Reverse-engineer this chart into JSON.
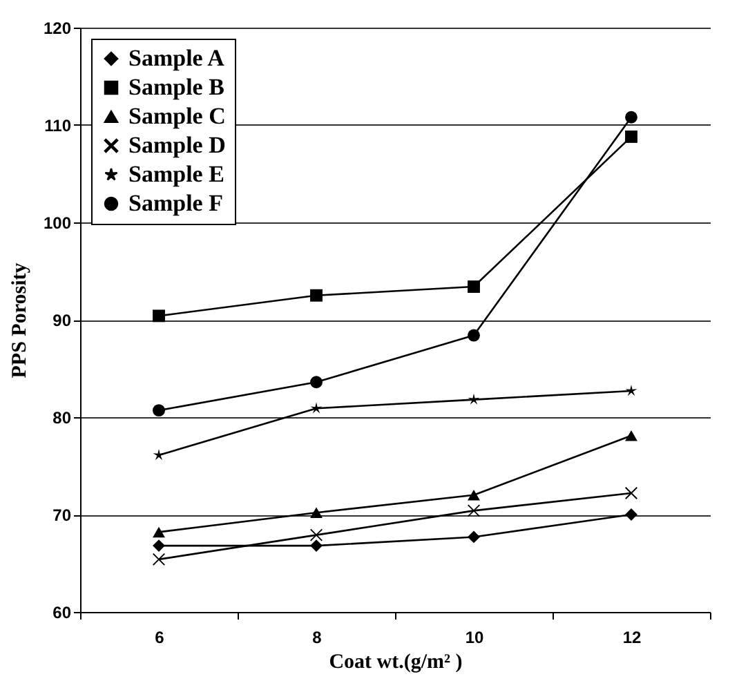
{
  "chart_data": {
    "type": "line",
    "xlabel": "Coat wt.(g/m² )",
    "ylabel": "PPS Porosity",
    "categories": [
      "6",
      "8",
      "10",
      "12"
    ],
    "series": [
      {
        "name": "Sample A",
        "color": "#000000",
        "marker": "diamond",
        "values": [
          66.8,
          66.8,
          67.7,
          70.0
        ]
      },
      {
        "name": "Sample B",
        "color": "#000000",
        "marker": "square",
        "values": [
          90.4,
          92.5,
          93.4,
          108.8
        ]
      },
      {
        "name": "Sample C",
        "color": "#000000",
        "marker": "triangle",
        "values": [
          68.2,
          70.2,
          72.0,
          78.1
        ]
      },
      {
        "name": "Sample D",
        "color": "#000000",
        "marker": "cross",
        "values": [
          65.4,
          67.9,
          70.4,
          72.2
        ]
      },
      {
        "name": "Sample E",
        "color": "#000000",
        "marker": "star",
        "values": [
          76.1,
          80.9,
          81.8,
          82.7
        ]
      },
      {
        "name": "Sample F",
        "color": "#000000",
        "marker": "circle",
        "values": [
          80.7,
          83.6,
          88.4,
          110.8
        ]
      }
    ],
    "ylim": [
      60,
      120
    ],
    "yticks": [
      60,
      70,
      80,
      90,
      100,
      110,
      120
    ],
    "grid": "y",
    "legend": "top left",
    "line_style": "solid"
  }
}
